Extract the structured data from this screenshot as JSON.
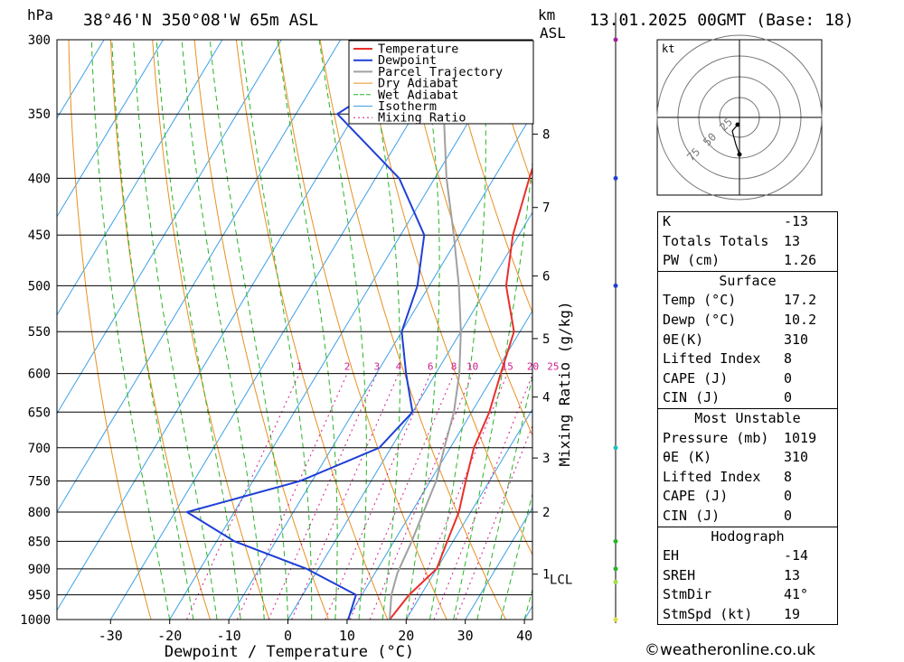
{
  "header": {
    "location": "38°46'N 350°08'W 65m ASL",
    "datetime": "13.01.2025 00GMT (Base: 18)",
    "hpa_label": "hPa",
    "km_label": "km",
    "asl_label": "ASL"
  },
  "chart_data": {
    "type": "line",
    "title": "38°46'N 350°08'W 65m ASL",
    "xlabel": "Dewpoint / Temperature (°C)",
    "ylabel": "hPa",
    "y2label": "Mixing Ratio (g/kg)",
    "xlim": [
      -40,
      40
    ],
    "ylim": [
      1000,
      300
    ],
    "yscale": "log",
    "x_ticks": [
      -30,
      -20,
      -10,
      0,
      10,
      20,
      30,
      40
    ],
    "pressure_levels": [
      300,
      350,
      400,
      450,
      500,
      550,
      600,
      650,
      700,
      750,
      800,
      850,
      900,
      950,
      1000
    ],
    "km_ticks": [
      {
        "label": "8",
        "p": 365
      },
      {
        "label": "7",
        "p": 425
      },
      {
        "label": "6",
        "p": 490
      },
      {
        "label": "5",
        "p": 558
      },
      {
        "label": "4",
        "p": 630
      },
      {
        "label": "3",
        "p": 715
      },
      {
        "label": "2",
        "p": 800
      },
      {
        "label": "1",
        "p": 910
      }
    ],
    "lcl_label": "LCL",
    "lcl_pressure": 908,
    "mixing_ratio_labels": [
      "1",
      "2",
      "3",
      "4",
      "6",
      "8",
      "10",
      "15",
      "20",
      "25"
    ],
    "legend": [
      "Temperature",
      "Dewpoint",
      "Parcel Trajectory",
      "Dry Adiabat",
      "Wet Adiabat",
      "Isotherm",
      "Mixing Ratio"
    ],
    "legend_position": "top-right",
    "colors": {
      "temperature": "#e8302c",
      "dewpoint": "#1f3fd6",
      "parcel": "#a0a0a0",
      "dry_adiabat": "#e89020",
      "wet_adiabat": "#28b428",
      "isotherm": "#3ca0e6",
      "mixing_ratio": "#d01c8c"
    },
    "series": [
      {
        "name": "Temperature",
        "points": [
          [
            -11,
            300
          ],
          [
            -7,
            350
          ],
          [
            -4,
            400
          ],
          [
            -1,
            450
          ],
          [
            3,
            500
          ],
          [
            9,
            550
          ],
          [
            11,
            600
          ],
          [
            13,
            650
          ],
          [
            14,
            700
          ],
          [
            16,
            750
          ],
          [
            18,
            800
          ],
          [
            19,
            850
          ],
          [
            20,
            900
          ],
          [
            18,
            950
          ],
          [
            17.2,
            1000
          ]
        ]
      },
      {
        "name": "Dewpoint",
        "points": [
          [
            -31,
            300
          ],
          [
            -43,
            350
          ],
          [
            -26,
            400
          ],
          [
            -16,
            450
          ],
          [
            -12,
            500
          ],
          [
            -10,
            550
          ],
          [
            -5,
            600
          ],
          [
            0,
            650
          ],
          [
            -2,
            700
          ],
          [
            -12,
            750
          ],
          [
            -28,
            800
          ],
          [
            -17,
            850
          ],
          [
            -2,
            900
          ],
          [
            9,
            950
          ],
          [
            10.2,
            1000
          ]
        ]
      },
      {
        "name": "Parcel Trajectory",
        "points": [
          [
            -33,
            300
          ],
          [
            -25,
            350
          ],
          [
            -18,
            400
          ],
          [
            -11,
            450
          ],
          [
            -5,
            500
          ],
          [
            0,
            550
          ],
          [
            4,
            600
          ],
          [
            7,
            650
          ],
          [
            9,
            700
          ],
          [
            11,
            750
          ],
          [
            12,
            800
          ],
          [
            13,
            850
          ],
          [
            13.8,
            908
          ],
          [
            15,
            950
          ],
          [
            17.2,
            1000
          ]
        ]
      }
    ]
  },
  "hodograph": {
    "unit_label": "kt",
    "ring_labels": [
      "25",
      "50",
      "75"
    ]
  },
  "stats": {
    "indices": [
      {
        "label": "K",
        "value": "-13"
      },
      {
        "label": "Totals Totals",
        "value": "13"
      },
      {
        "label": "PW (cm)",
        "value": "1.26"
      }
    ],
    "surface": {
      "title": "Surface",
      "rows": [
        {
          "label": "Temp (°C)",
          "value": "17.2"
        },
        {
          "label": "Dewp (°C)",
          "value": "10.2"
        },
        {
          "label": "θE(K)",
          "value": "310"
        },
        {
          "label": "Lifted Index",
          "value": "8"
        },
        {
          "label": "CAPE (J)",
          "value": "0"
        },
        {
          "label": "CIN (J)",
          "value": "0"
        }
      ]
    },
    "most_unstable": {
      "title": "Most Unstable",
      "rows": [
        {
          "label": "Pressure (mb)",
          "value": "1019"
        },
        {
          "label": "θE (K)",
          "value": "310"
        },
        {
          "label": "Lifted Index",
          "value": "8"
        },
        {
          "label": "CAPE (J)",
          "value": "0"
        },
        {
          "label": "CIN (J)",
          "value": "0"
        }
      ]
    },
    "hodograph": {
      "title": "Hodograph",
      "rows": [
        {
          "label": "EH",
          "value": "-14"
        },
        {
          "label": "SREH",
          "value": "13"
        },
        {
          "label": "StmDir",
          "value": "41°"
        },
        {
          "label": "StmSpd (kt)",
          "value": "19"
        }
      ]
    }
  },
  "footer": {
    "copyright_symbol": "©",
    "site": "weatheronline.co.uk"
  }
}
